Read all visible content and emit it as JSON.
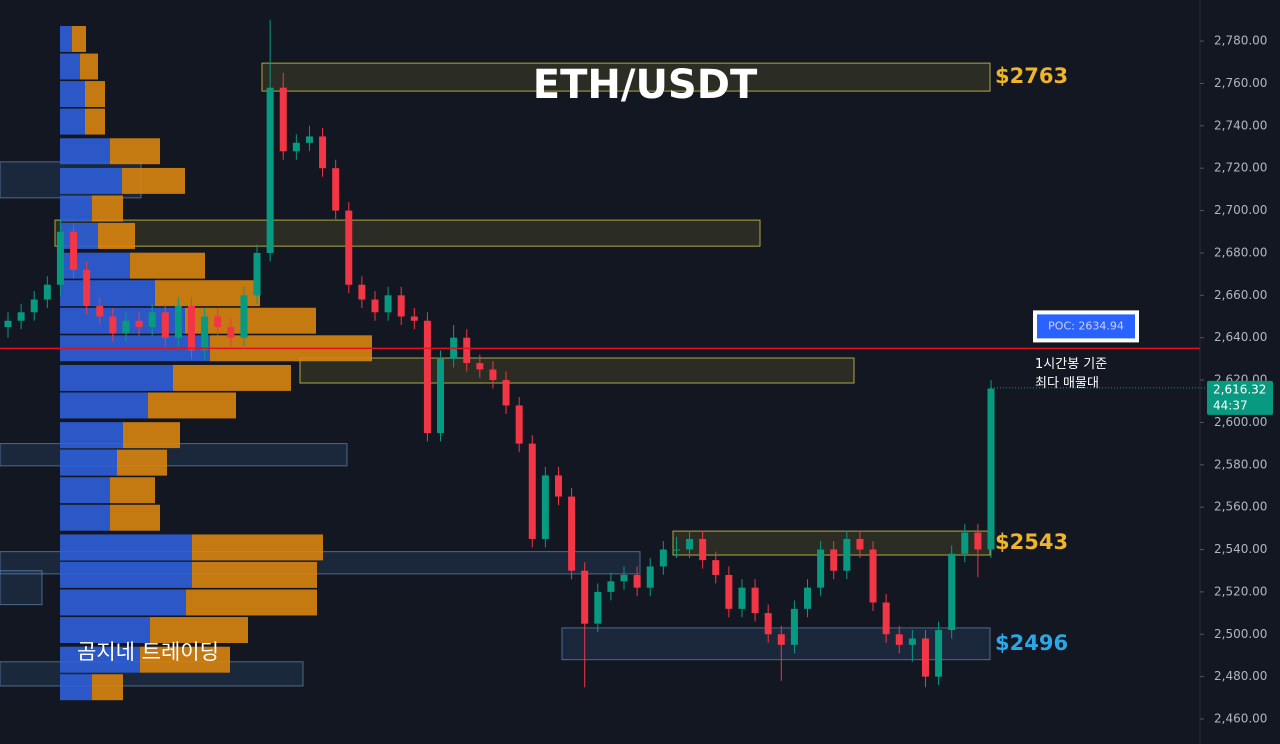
{
  "chart_data": {
    "type": "candlestick",
    "title": "ETH/USDT",
    "watermark": "곰지네 트레이딩",
    "up_color": "#089981",
    "down_color": "#f23645",
    "ylim": [
      2448.2,
      2799.4
    ],
    "yticks": [
      {
        "value": 2460,
        "label": "2,460.00"
      },
      {
        "value": 2480,
        "label": "2,480.00"
      },
      {
        "value": 2500,
        "label": "2,500.00"
      },
      {
        "value": 2520,
        "label": "2,520.00"
      },
      {
        "value": 2540,
        "label": "2,540.00"
      },
      {
        "value": 2560,
        "label": "2,560.00"
      },
      {
        "value": 2580,
        "label": "2,580.00"
      },
      {
        "value": 2600,
        "label": "2,600.00"
      },
      {
        "value": 2620,
        "label": "2,620.00"
      },
      {
        "value": 2640,
        "label": "2,640.00"
      },
      {
        "value": 2660,
        "label": "2,660.00"
      },
      {
        "value": 2680,
        "label": "2,680.00"
      },
      {
        "value": 2700,
        "label": "2,700.00"
      },
      {
        "value": 2720,
        "label": "2,720.00"
      },
      {
        "value": 2740,
        "label": "2,740.00"
      },
      {
        "value": 2760,
        "label": "2,760.00"
      },
      {
        "value": 2780,
        "label": "2,780.00"
      }
    ],
    "grid": false,
    "ohlc": [
      [
        2645,
        2652,
        2640,
        2648
      ],
      [
        2648,
        2656,
        2644,
        2652
      ],
      [
        2652,
        2662,
        2648,
        2658
      ],
      [
        2658,
        2669,
        2654,
        2665
      ],
      [
        2665,
        2696,
        2660,
        2690
      ],
      [
        2690,
        2694,
        2668,
        2672
      ],
      [
        2672,
        2676,
        2651,
        2655
      ],
      [
        2655,
        2659,
        2646,
        2650
      ],
      [
        2650,
        2654,
        2638,
        2642
      ],
      [
        2642,
        2652,
        2638,
        2648
      ],
      [
        2648,
        2652,
        2641,
        2645
      ],
      [
        2645,
        2656,
        2641,
        2652
      ],
      [
        2652,
        2656,
        2636,
        2640
      ],
      [
        2640,
        2659,
        2636,
        2655
      ],
      [
        2655,
        2659,
        2630,
        2634
      ],
      [
        2634,
        2654,
        2630,
        2650
      ],
      [
        2650,
        2654,
        2641,
        2645
      ],
      [
        2645,
        2649,
        2636,
        2640
      ],
      [
        2640,
        2664,
        2636,
        2660
      ],
      [
        2660,
        2684,
        2656,
        2680
      ],
      [
        2680,
        2790,
        2676,
        2758
      ],
      [
        2758,
        2765,
        2724,
        2728
      ],
      [
        2728,
        2736,
        2724,
        2732
      ],
      [
        2732,
        2740,
        2728,
        2735
      ],
      [
        2735,
        2739,
        2716,
        2720
      ],
      [
        2720,
        2724,
        2696,
        2700
      ],
      [
        2700,
        2704,
        2661,
        2665
      ],
      [
        2665,
        2669,
        2654,
        2658
      ],
      [
        2658,
        2662,
        2648,
        2652
      ],
      [
        2652,
        2664,
        2648,
        2660
      ],
      [
        2660,
        2664,
        2646,
        2650
      ],
      [
        2650,
        2654,
        2644,
        2648
      ],
      [
        2648,
        2652,
        2591,
        2595
      ],
      [
        2595,
        2634,
        2591,
        2630
      ],
      [
        2630,
        2646,
        2626,
        2640
      ],
      [
        2640,
        2644,
        2624,
        2628
      ],
      [
        2628,
        2632,
        2621,
        2625
      ],
      [
        2625,
        2629,
        2616,
        2620
      ],
      [
        2620,
        2624,
        2604,
        2608
      ],
      [
        2608,
        2612,
        2586,
        2590
      ],
      [
        2590,
        2594,
        2541,
        2545
      ],
      [
        2545,
        2579,
        2541,
        2575
      ],
      [
        2575,
        2579,
        2561,
        2565
      ],
      [
        2565,
        2569,
        2526,
        2530
      ],
      [
        2530,
        2534,
        2475,
        2505
      ],
      [
        2505,
        2524,
        2501,
        2520
      ],
      [
        2520,
        2529,
        2516,
        2525
      ],
      [
        2525,
        2532,
        2521,
        2528
      ],
      [
        2528,
        2532,
        2518,
        2522
      ],
      [
        2522,
        2536,
        2518,
        2532
      ],
      [
        2532,
        2544,
        2528,
        2540
      ],
      [
        2540,
        2546,
        2536,
        2540
      ],
      [
        2540,
        2549,
        2536,
        2545
      ],
      [
        2545,
        2549,
        2531,
        2535
      ],
      [
        2535,
        2539,
        2524,
        2528
      ],
      [
        2528,
        2532,
        2508,
        2512
      ],
      [
        2512,
        2526,
        2508,
        2522
      ],
      [
        2522,
        2526,
        2506,
        2510
      ],
      [
        2510,
        2514,
        2496,
        2500
      ],
      [
        2500,
        2504,
        2478,
        2495
      ],
      [
        2495,
        2516,
        2491,
        2512
      ],
      [
        2512,
        2526,
        2508,
        2522
      ],
      [
        2522,
        2544,
        2518,
        2540
      ],
      [
        2540,
        2544,
        2526,
        2530
      ],
      [
        2530,
        2549,
        2526,
        2545
      ],
      [
        2545,
        2549,
        2536,
        2540
      ],
      [
        2540,
        2544,
        2511,
        2515
      ],
      [
        2515,
        2519,
        2496,
        2500
      ],
      [
        2500,
        2504,
        2491,
        2495
      ],
      [
        2495,
        2502,
        2487,
        2498
      ],
      [
        2498,
        2502,
        2475,
        2480
      ],
      [
        2480,
        2506,
        2476,
        2502
      ],
      [
        2502,
        2542,
        2498,
        2538
      ],
      [
        2538,
        2552,
        2534,
        2548
      ],
      [
        2548,
        2552,
        2527,
        2540
      ],
      [
        2540,
        2620,
        2536,
        2616
      ]
    ],
    "volume_profile": {
      "buy_color": "#2f5fd8",
      "sell_color": "#d98410",
      "price_levels": [
        2781,
        2768,
        2755,
        2742,
        2728,
        2714,
        2701,
        2688,
        2674,
        2661,
        2648,
        2635,
        2621,
        2608,
        2594,
        2581,
        2568,
        2555,
        2541,
        2528,
        2515,
        2502,
        2488,
        2475
      ],
      "buy": [
        12,
        20,
        25,
        25,
        50,
        62,
        32,
        38,
        70,
        95,
        125,
        150,
        113,
        88,
        63,
        57,
        50,
        50,
        132,
        132,
        126,
        90,
        80,
        32
      ],
      "sell": [
        14,
        18,
        20,
        20,
        50,
        63,
        31,
        37,
        75,
        105,
        131,
        162,
        118,
        88,
        57,
        50,
        45,
        50,
        131,
        125,
        131,
        98,
        90,
        31
      ]
    },
    "zones": [
      {
        "low": 2756.4,
        "high": 2769.6,
        "color": "yellow",
        "label": "$2763"
      },
      {
        "low": 2683.2,
        "high": 2695.5,
        "color": "yellow"
      },
      {
        "low": 2618.6,
        "high": 2630.4,
        "color": "yellow"
      },
      {
        "low": 2537.4,
        "high": 2548.7,
        "color": "yellow",
        "label": "$2543"
      },
      {
        "low": 2488,
        "high": 2503,
        "color": "blue",
        "label": "$2496"
      },
      {
        "low": 2706,
        "high": 2723,
        "color": "blue"
      },
      {
        "low": 2579.5,
        "high": 2590,
        "color": "blue"
      },
      {
        "low": 2528.5,
        "high": 2539,
        "color": "blue"
      },
      {
        "low": 2514,
        "high": 2530,
        "color": "blue"
      },
      {
        "low": 2475.6,
        "high": 2487,
        "color": "blue"
      }
    ],
    "poc": {
      "value": 2634.94,
      "label": "POC: 2634.94",
      "color": "#e0101e",
      "note": [
        "1시간봉 기준",
        "최다 매물대"
      ]
    },
    "last_price": {
      "value": 2616.32,
      "label": "2,616.32",
      "countdown": "44:37"
    }
  }
}
